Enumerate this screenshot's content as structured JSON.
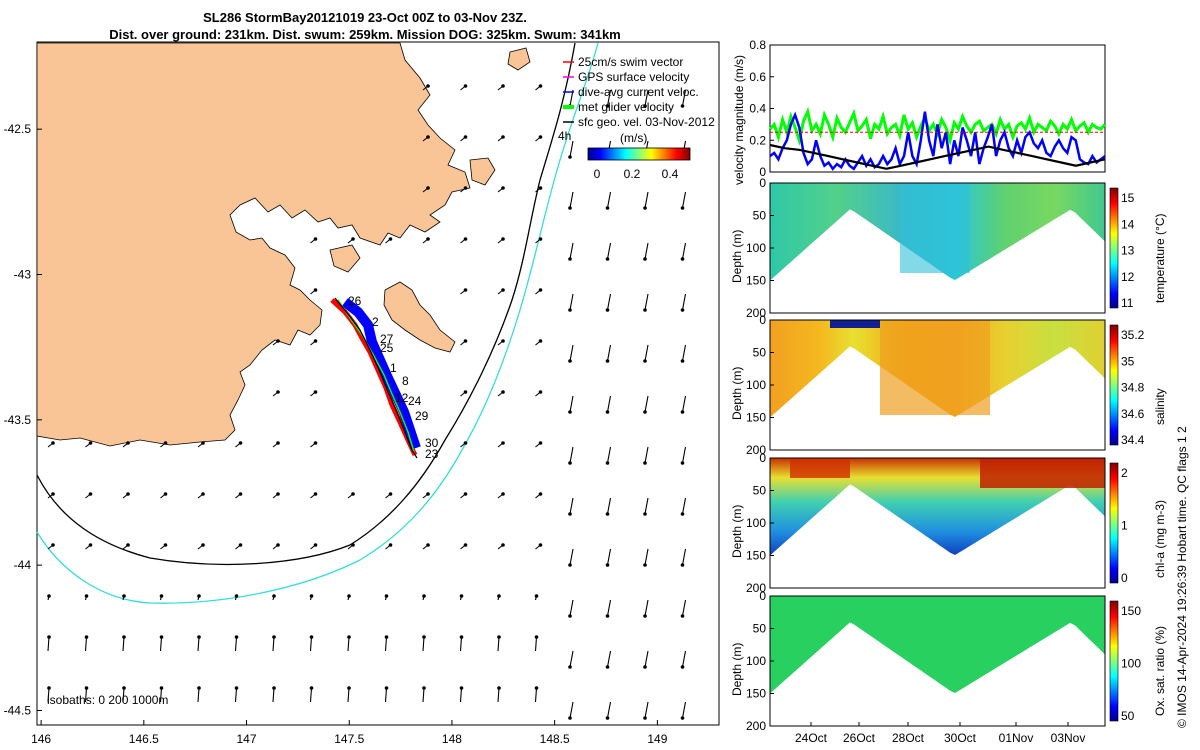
{
  "title_line1": "SL286 StormBay20121019 23-Oct 00Z to 03-Nov 23Z.",
  "title_line2": "Dist. over ground: 231km. Dist. swum: 259km. Mission DOG: 325km. Swum: 341km",
  "credit": "© IMOS 14-Apr-2024 19:26:39 Hobart time. QC flags 1  2",
  "colors": {
    "land": "#f9c596",
    "track_red": "#ff0000",
    "dive_blue": "#0000ff",
    "glider_green": "#00ff00",
    "isobath_200": "#000000",
    "isobath_1000": "#33dddd"
  },
  "chart_data": [
    {
      "type": "map",
      "x_ticks": [
        "146",
        "146.5",
        "147",
        "147.5",
        "148",
        "148.5",
        "149"
      ],
      "y_ticks": [
        "-42.5",
        "-43",
        "-43.5",
        "-44",
        "-44.5"
      ],
      "xlim": [
        145.98,
        149.3
      ],
      "ylim": [
        -44.55,
        -42.2
      ],
      "legend": [
        {
          "label": "25cm/s swim vector",
          "color": "#ff0000"
        },
        {
          "label": "GPS surface velocity",
          "color": "#ff00ff"
        },
        {
          "label": "dive-avg current veloc.",
          "color": "#0000ff"
        },
        {
          "label": "met glider velocity",
          "color": "#00ff00"
        },
        {
          "label": "sfc geo. vel. 03-Nov-2012",
          "color": "#000000"
        }
      ],
      "time_marker": "4h",
      "colorbar": {
        "title": "(m/s)",
        "ticks": [
          "0",
          "0.2",
          "0.4"
        ]
      },
      "isobath_label": "isobaths: 0   200  1000m",
      "track_labels": [
        "26",
        "2",
        "27",
        "25",
        "1",
        "8",
        "24",
        "12",
        "29",
        "30",
        "23"
      ]
    },
    {
      "type": "line",
      "ylabel": "velocity magnitude (m/s)",
      "y_ticks": [
        "0",
        "0.2",
        "0.4",
        "0.6",
        "0.8"
      ],
      "ylim": [
        0,
        0.8
      ],
      "series": [
        {
          "color": "#00ff00",
          "values": [
            0.27,
            0.3,
            0.22,
            0.33,
            0.25,
            0.35,
            0.28,
            0.2,
            0.32,
            0.38,
            0.26,
            0.3,
            0.24,
            0.36,
            0.3,
            0.22,
            0.34,
            0.28,
            0.25,
            0.31,
            0.37,
            0.26,
            0.29,
            0.33,
            0.21,
            0.3,
            0.27,
            0.35,
            0.24,
            0.28,
            0.3,
            0.23,
            0.36,
            0.27,
            0.31,
            0.22,
            0.29,
            0.34,
            0.26,
            0.3,
            0.24,
            0.33,
            0.28,
            0.2,
            0.31,
            0.27,
            0.35,
            0.29,
            0.25,
            0.3,
            0.32,
            0.26,
            0.28,
            0.3,
            0.24,
            0.33,
            0.27,
            0.3,
            0.22,
            0.29,
            0.31,
            0.27,
            0.34,
            0.25,
            0.3,
            0.28,
            0.26,
            0.32,
            0.29,
            0.24,
            0.3,
            0.27,
            0.33,
            0.26,
            0.29,
            0.31,
            0.25,
            0.3,
            0.28,
            0.27,
            0.3
          ]
        },
        {
          "color": "#0000ff",
          "values": [
            0.1,
            0.12,
            0.08,
            0.15,
            0.2,
            0.3,
            0.36,
            0.28,
            0.12,
            0.05,
            0.08,
            0.2,
            0.1,
            0.04,
            0.06,
            0.02,
            0.05,
            0.03,
            0.08,
            0.04,
            0.02,
            0.06,
            0.1,
            0.04,
            0.08,
            0.03,
            0.05,
            0.1,
            0.05,
            0.08,
            0.15,
            0.05,
            0.1,
            0.25,
            0.1,
            0.05,
            0.2,
            0.38,
            0.2,
            0.1,
            0.3,
            0.15,
            0.25,
            0.05,
            0.2,
            0.1,
            0.28,
            0.2,
            0.1,
            0.25,
            0.05,
            0.15,
            0.22,
            0.3,
            0.1,
            0.2,
            0.25,
            0.15,
            0.1,
            0.2,
            0.12,
            0.22,
            0.25,
            0.18,
            0.15,
            0.2,
            0.12,
            0.1,
            0.16,
            0.2,
            0.15,
            0.12,
            0.22,
            0.2,
            0.08,
            0.06,
            0.05,
            0.1,
            0.06,
            0.08,
            0.1
          ]
        },
        {
          "color": "#000000",
          "values": [
            0.17,
            0.15,
            0.14,
            0.12,
            0.1,
            0.08,
            0.06,
            0.04,
            0.02,
            0.04,
            0.06,
            0.08,
            0.1,
            0.12,
            0.14,
            0.16,
            0.14,
            0.12,
            0.1,
            0.08,
            0.06,
            0.04,
            0.06,
            0.08
          ]
        },
        {
          "color": "#ff0000",
          "values": [
            0.25,
            0.25,
            0.25,
            0.25,
            0.25,
            0.25,
            0.25,
            0.25,
            0.25,
            0.25,
            0.25,
            0.25,
            0.25,
            0.25,
            0.25,
            0.25,
            0.25,
            0.25,
            0.25,
            0.25,
            0.25,
            0.25,
            0.25,
            0.25
          ]
        }
      ]
    },
    {
      "type": "heatmap",
      "ylabel": "Depth (m)",
      "y_ticks": [
        "0",
        "50",
        "100",
        "150",
        "200"
      ],
      "ylim": [
        200,
        0
      ],
      "colorbar_label": "temperature (°C)",
      "colorbar_ticks": [
        "15",
        "14",
        "13",
        "12",
        "11"
      ]
    },
    {
      "type": "heatmap",
      "ylabel": "Depth (m)",
      "y_ticks": [
        "0",
        "50",
        "100",
        "150",
        "200"
      ],
      "ylim": [
        200,
        0
      ],
      "colorbar_label": "salinity",
      "colorbar_ticks": [
        "35.2",
        "35",
        "34.8",
        "34.6",
        "34.4"
      ]
    },
    {
      "type": "heatmap",
      "ylabel": "Depth (m)",
      "y_ticks": [
        "0",
        "50",
        "100",
        "150",
        "200"
      ],
      "ylim": [
        200,
        0
      ],
      "colorbar_label": "chl-a (mg m-3)",
      "colorbar_ticks": [
        "2",
        "1",
        "0"
      ]
    },
    {
      "type": "heatmap",
      "ylabel": "Depth (m)",
      "y_ticks": [
        "0",
        "50",
        "100",
        "150",
        "200"
      ],
      "ylim": [
        200,
        0
      ],
      "colorbar_label": "Ox. sat. ratio (%)",
      "colorbar_ticks": [
        "150",
        "100",
        "50"
      ],
      "x_ticks": [
        "24Oct",
        "26Oct",
        "28Oct",
        "30Oct",
        "01Nov",
        "03Nov"
      ]
    }
  ]
}
